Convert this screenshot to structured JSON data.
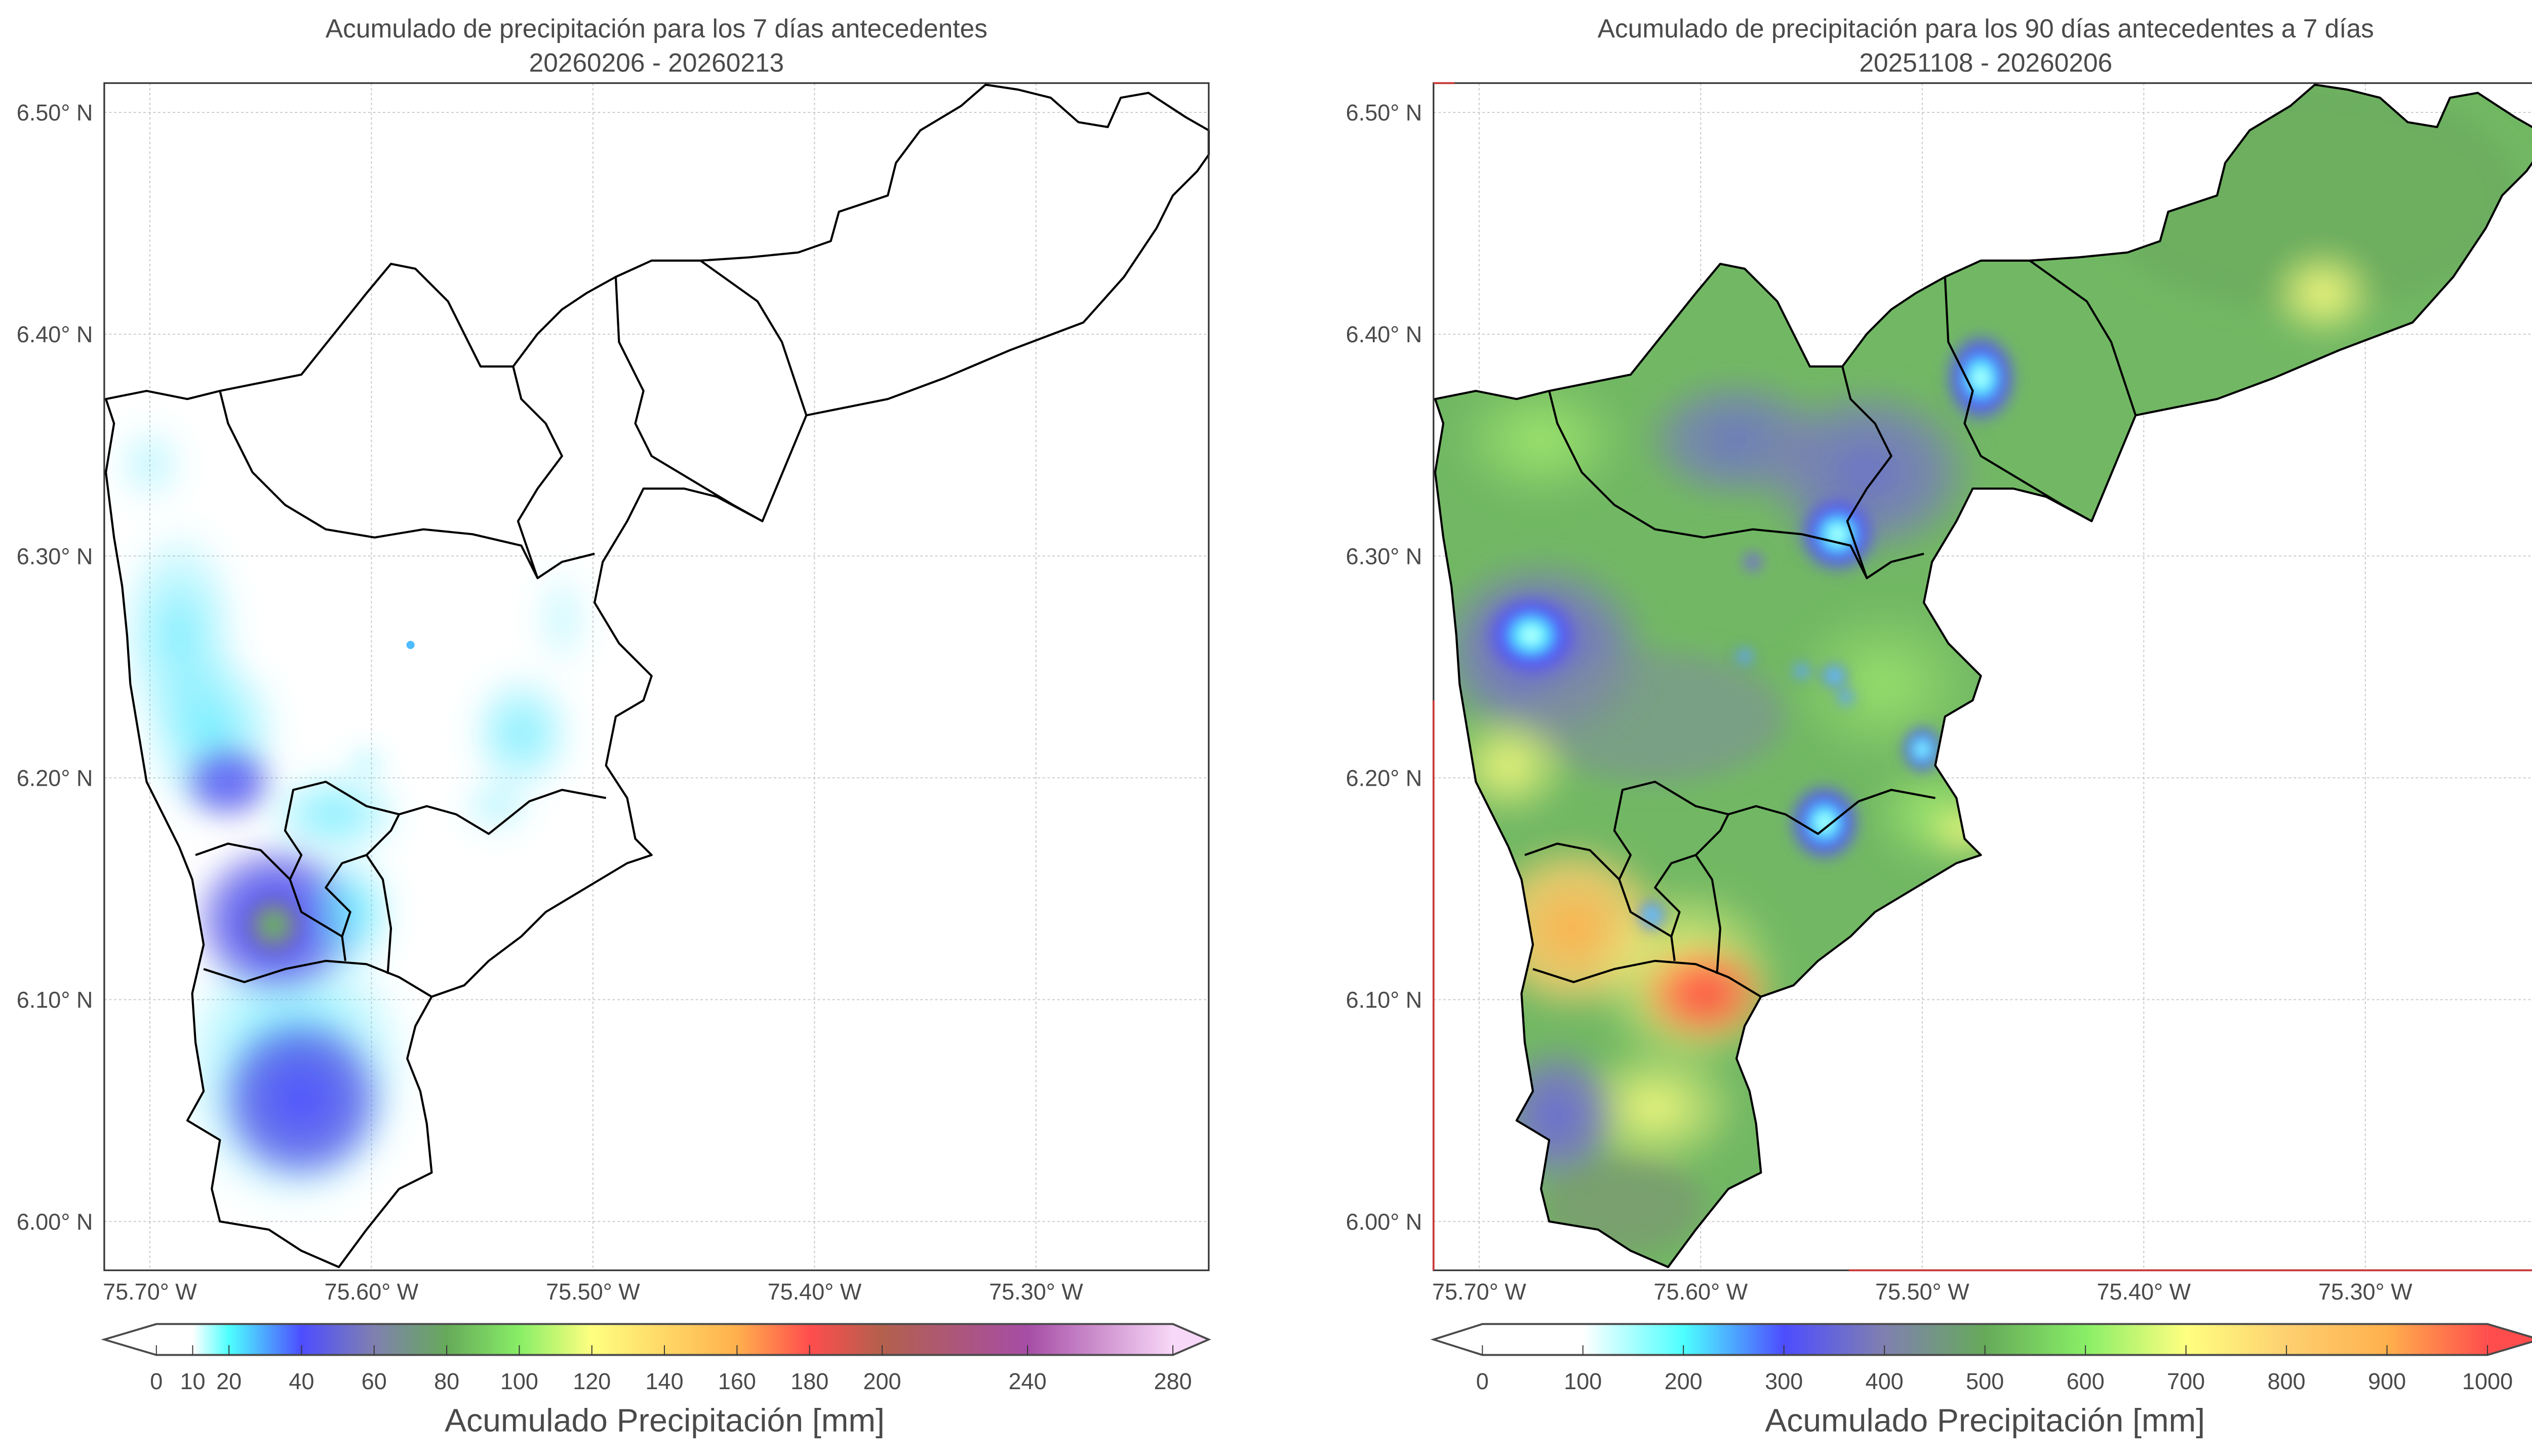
{
  "panels": [
    {
      "title": "Acumulado de precipitación para los 7 días antecedentes",
      "subtitle": "20260206 - 20260213",
      "lat_ticks": [
        "6.50° N",
        "6.40° N",
        "6.30° N",
        "6.20° N",
        "6.10° N",
        "6.00° N"
      ],
      "lat_values": [
        6.5,
        6.4,
        6.3,
        6.2,
        6.1,
        6.0
      ],
      "lon_ticks": [
        "75.70° W",
        "75.60° W",
        "75.50° W",
        "75.40° W",
        "75.30° W"
      ],
      "lon_values": [
        75.7,
        75.6,
        75.5,
        75.4,
        75.3
      ],
      "colorbar": {
        "label": "Acumulado Precipitación [mm]",
        "ticks": [
          "0",
          "10",
          "20",
          "40",
          "60",
          "80",
          "100",
          "120",
          "140",
          "160",
          "180",
          "200",
          "240",
          "280"
        ],
        "tick_values": [
          0,
          10,
          20,
          40,
          60,
          80,
          100,
          120,
          140,
          160,
          180,
          200,
          240,
          280
        ],
        "extend": "both",
        "colors": [
          {
            "value": 0,
            "color": "#ffffff"
          },
          {
            "value": 10,
            "color": "#ffffff"
          },
          {
            "value": 20,
            "color": "#4dffff"
          },
          {
            "value": 40,
            "color": "#4d4dff"
          },
          {
            "value": 60,
            "color": "#8080b0"
          },
          {
            "value": 80,
            "color": "#66aa5a"
          },
          {
            "value": 100,
            "color": "#88ee66"
          },
          {
            "value": 120,
            "color": "#ffff80"
          },
          {
            "value": 160,
            "color": "#ffb04d"
          },
          {
            "value": 180,
            "color": "#ff4d4d"
          },
          {
            "value": 200,
            "color": "#b3604d"
          },
          {
            "value": 240,
            "color": "#a64da6"
          },
          {
            "value": 280,
            "color": "#f8d8f8"
          }
        ],
        "under_color": "#ffffff",
        "over_color": "#f8d8f8"
      }
    },
    {
      "title": "Acumulado de precipitación para los 90 días antecedentes a 7 días",
      "subtitle": "20251108 - 20260206",
      "lat_ticks": [
        "6.50° N",
        "6.40° N",
        "6.30° N",
        "6.20° N",
        "6.10° N",
        "6.00° N"
      ],
      "lat_values": [
        6.5,
        6.4,
        6.3,
        6.2,
        6.1,
        6.0
      ],
      "lon_ticks": [
        "75.70° W",
        "75.60° W",
        "75.50° W",
        "75.40° W",
        "75.30° W"
      ],
      "lon_values": [
        75.7,
        75.6,
        75.5,
        75.4,
        75.3
      ],
      "colorbar": {
        "label": "Acumulado Precipitación [mm]",
        "ticks": [
          "0",
          "100",
          "200",
          "300",
          "400",
          "500",
          "600",
          "700",
          "800",
          "900",
          "1000"
        ],
        "tick_values": [
          0,
          100,
          200,
          300,
          400,
          500,
          600,
          700,
          800,
          900,
          1000
        ],
        "extend": "both",
        "colors": [
          {
            "value": 0,
            "color": "#ffffff"
          },
          {
            "value": 100,
            "color": "#ffffff"
          },
          {
            "value": 200,
            "color": "#4dffff"
          },
          {
            "value": 300,
            "color": "#4d4dff"
          },
          {
            "value": 400,
            "color": "#8080b0"
          },
          {
            "value": 500,
            "color": "#66aa5a"
          },
          {
            "value": 600,
            "color": "#88ee66"
          },
          {
            "value": 700,
            "color": "#ffff80"
          },
          {
            "value": 800,
            "color": "#fdd070"
          },
          {
            "value": 900,
            "color": "#ffb04d"
          },
          {
            "value": 1000,
            "color": "#ff4d4d"
          }
        ],
        "under_color": "#ffffff",
        "over_color": "#ff4d4d"
      }
    }
  ]
}
